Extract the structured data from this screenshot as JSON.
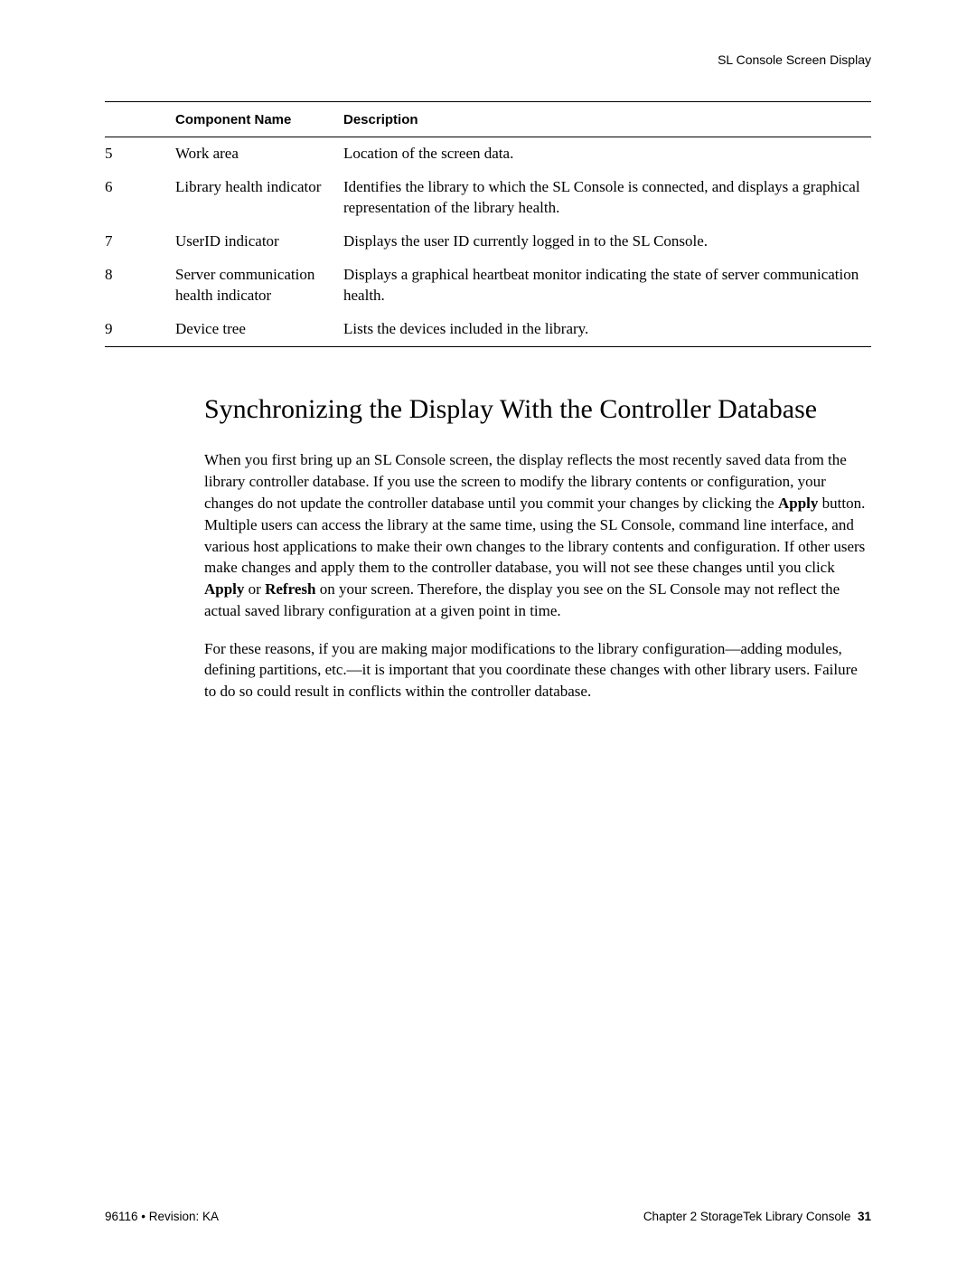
{
  "running_head": "SL Console Screen Display",
  "table": {
    "headers": {
      "num": "",
      "name": "Component Name",
      "desc": "Description"
    },
    "rows": [
      {
        "num": "5",
        "name": "Work area",
        "desc": "Location of the screen data."
      },
      {
        "num": "6",
        "name": "Library health indicator",
        "desc": "Identifies the library to which the SL Console is connected, and displays a graphical representation of the library health."
      },
      {
        "num": "7",
        "name": "UserID indicator",
        "desc": "Displays the user ID currently logged in to the SL Console."
      },
      {
        "num": "8",
        "name": "Server communication health indicator",
        "desc": "Displays a graphical heartbeat monitor indicating the state of server communication health."
      },
      {
        "num": "9",
        "name": "Device tree",
        "desc": "Lists the devices included in the library."
      }
    ]
  },
  "section_title": "Synchronizing the Display With the Controller Database",
  "paragraphs": {
    "p1_a": "When you first bring up an SL Console screen, the display reflects the most recently saved data from the library controller database. If you use the screen to modify the library contents or configuration, your changes do not update the controller database until you commit your changes by clicking the ",
    "p1_bold1": "Apply",
    "p1_b": " button. Multiple users can access the library at the same time, using the SL Console, command line interface, and various host applications to make their own changes to the library contents and configuration. If other users make changes and apply them to the controller database, you will not see these changes until you click ",
    "p1_bold2": "Apply",
    "p1_c": " or ",
    "p1_bold3": "Refresh",
    "p1_d": " on your screen. Therefore, the display you see on the SL Console may not reflect the actual saved library configuration at a given point in time.",
    "p2": "For these reasons, if you are making major modifications to the library configuration—adding modules, defining partitions, etc.—it is important that you coordinate these changes with other library users. Failure to do so could result in conflicts within the controller database."
  },
  "footer": {
    "left": "96116 • Revision: KA",
    "right_prefix": "Chapter 2 StorageTek Library Console",
    "right_page": "31"
  }
}
